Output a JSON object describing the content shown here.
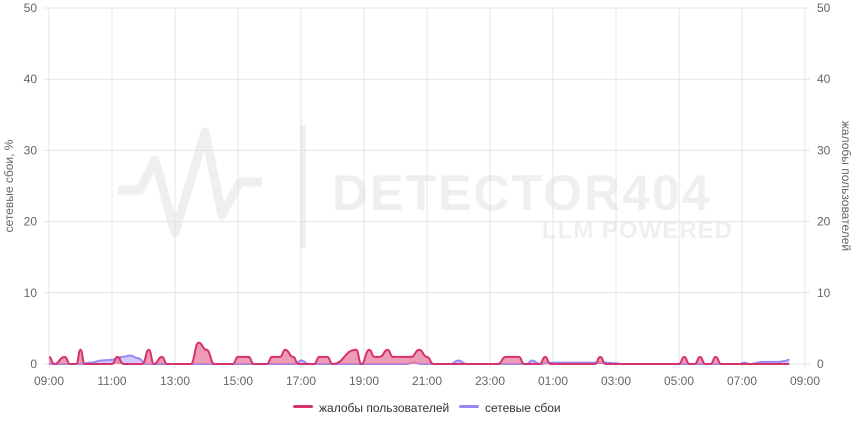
{
  "watermark": {
    "brand": "DETECTOR404",
    "tagline": "LLM POWERED"
  },
  "chart_data": {
    "type": "area",
    "title": "",
    "x_ticks": [
      "09:00",
      "11:00",
      "13:00",
      "15:00",
      "17:00",
      "19:00",
      "21:00",
      "23:00",
      "01:00",
      "03:00",
      "05:00",
      "07:00",
      "09:00"
    ],
    "y_left": {
      "label": "сетевые сбои, %",
      "range": [
        0,
        50
      ],
      "ticks": [
        "0",
        "10",
        "20",
        "30",
        "40",
        "50"
      ]
    },
    "y_right": {
      "label": "жалобы пользователей",
      "range": [
        0,
        50
      ],
      "ticks": [
        "0",
        "10",
        "20",
        "30",
        "40",
        "50"
      ]
    },
    "grid": true,
    "legend_position": "bottom",
    "series": [
      {
        "name": "жалобы пользователей",
        "axis": "right",
        "color": "#d6336c",
        "fill": "#e8799e",
        "points": [
          [
            "09:00",
            1
          ],
          [
            "09:10",
            0
          ],
          [
            "09:30",
            1
          ],
          [
            "09:40",
            0
          ],
          [
            "09:52",
            0
          ],
          [
            "10:00",
            2
          ],
          [
            "10:08",
            0
          ],
          [
            "11:00",
            0
          ],
          [
            "11:10",
            1
          ],
          [
            "11:22",
            0
          ],
          [
            "11:58",
            0
          ],
          [
            "12:10",
            2
          ],
          [
            "12:20",
            0
          ],
          [
            "12:35",
            1
          ],
          [
            "12:45",
            0
          ],
          [
            "13:30",
            0
          ],
          [
            "13:45",
            3
          ],
          [
            "14:00",
            2
          ],
          [
            "14:15",
            0
          ],
          [
            "14:50",
            0
          ],
          [
            "15:00",
            1
          ],
          [
            "15:20",
            1
          ],
          [
            "15:30",
            0
          ],
          [
            "15:55",
            0
          ],
          [
            "16:05",
            1
          ],
          [
            "16:20",
            1
          ],
          [
            "16:30",
            2
          ],
          [
            "16:45",
            1
          ],
          [
            "16:55",
            0
          ],
          [
            "17:25",
            0
          ],
          [
            "17:35",
            1
          ],
          [
            "17:50",
            1
          ],
          [
            "18:00",
            0
          ],
          [
            "18:45",
            2
          ],
          [
            "18:55",
            0
          ],
          [
            "19:10",
            2
          ],
          [
            "19:20",
            1
          ],
          [
            "19:30",
            1
          ],
          [
            "19:45",
            2
          ],
          [
            "19:55",
            1
          ],
          [
            "20:30",
            1
          ],
          [
            "20:45",
            2
          ],
          [
            "21:00",
            1
          ],
          [
            "21:12",
            0
          ],
          [
            "23:15",
            0
          ],
          [
            "23:30",
            1
          ],
          [
            "23:55",
            1
          ],
          [
            "24:05",
            0
          ],
          [
            "00:35",
            0
          ],
          [
            "00:45",
            1
          ],
          [
            "00:55",
            0
          ],
          [
            "02:20",
            0
          ],
          [
            "02:30",
            1
          ],
          [
            "02:40",
            0
          ],
          [
            "05:00",
            0
          ],
          [
            "05:10",
            1
          ],
          [
            "05:20",
            0
          ],
          [
            "05:30",
            0
          ],
          [
            "05:40",
            1
          ],
          [
            "05:50",
            0
          ],
          [
            "06:00",
            0
          ],
          [
            "06:10",
            1
          ],
          [
            "06:20",
            0
          ],
          [
            "08:30",
            0
          ]
        ]
      },
      {
        "name": "сетевые сбои",
        "axis": "left",
        "color": "#9b87f5",
        "fill": "#c4b8f8",
        "points": [
          [
            "09:00",
            0
          ],
          [
            "10:00",
            0
          ],
          [
            "10:20",
            0.2
          ],
          [
            "10:40",
            0.5
          ],
          [
            "11:00",
            0.6
          ],
          [
            "11:20",
            1
          ],
          [
            "11:35",
            1.2
          ],
          [
            "11:50",
            0.8
          ],
          [
            "12:05",
            0
          ],
          [
            "16:50",
            0
          ],
          [
            "17:00",
            0.5
          ],
          [
            "17:15",
            0
          ],
          [
            "20:20",
            0
          ],
          [
            "20:35",
            0.2
          ],
          [
            "20:50",
            0
          ],
          [
            "21:45",
            0
          ],
          [
            "22:00",
            0.5
          ],
          [
            "22:15",
            0
          ],
          [
            "24:10",
            0
          ],
          [
            "24:20",
            0.5
          ],
          [
            "24:35",
            0
          ],
          [
            "01:00",
            0.2
          ],
          [
            "01:30",
            0.2
          ],
          [
            "02:00",
            0.2
          ],
          [
            "02:40",
            0.2
          ],
          [
            "03:00",
            0.1
          ],
          [
            "03:10",
            0
          ],
          [
            "06:55",
            0
          ],
          [
            "07:05",
            0.2
          ],
          [
            "07:15",
            0
          ],
          [
            "07:40",
            0.3
          ],
          [
            "08:10",
            0.3
          ],
          [
            "08:20",
            0.4
          ],
          [
            "08:30",
            0.6
          ]
        ]
      }
    ]
  }
}
